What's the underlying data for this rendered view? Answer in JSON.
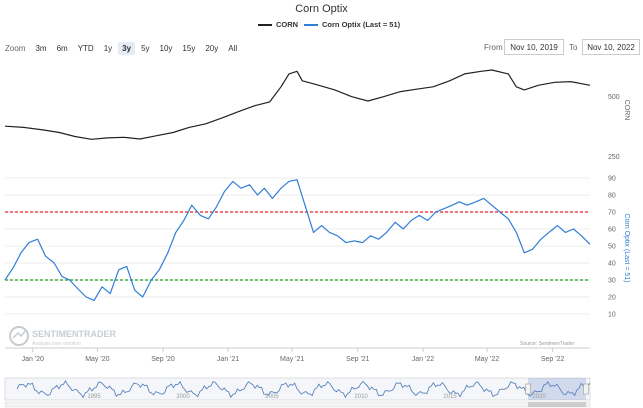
{
  "title": "Corn Optix",
  "legend": {
    "series1": "CORN",
    "series2": "Corn Optix (Last = 51)"
  },
  "colors": {
    "price": "#222222",
    "optix": "#2f7ed8",
    "upper_line": "#e8242b",
    "lower_line": "#1e9e1e",
    "navigator": "#4a78b5"
  },
  "zoom": {
    "label": "Zoom",
    "buttons": [
      "3m",
      "6m",
      "YTD",
      "1y",
      "3y",
      "5y",
      "10y",
      "15y",
      "20y",
      "All"
    ],
    "active": "3y"
  },
  "range": {
    "from_label": "From",
    "from_value": "Nov 10, 2019",
    "to_label": "To",
    "to_value": "Nov 10, 2022"
  },
  "watermark": {
    "name": "SENTIMENTRADER",
    "tagline": "Analysis over emotion"
  },
  "credit": "Source: SentimenTrader",
  "chart_data": {
    "type": "line",
    "x_ticks": [
      "Jan '20",
      "May '20",
      "Sep '20",
      "Jan '21",
      "May '21",
      "Sep '21",
      "Jan '22",
      "May '22",
      "Sep '22"
    ],
    "navigator_ticks": [
      "1995",
      "2000",
      "2005",
      "2010",
      "2015",
      "2020"
    ],
    "series": [
      {
        "name": "CORN",
        "axis": "CORN",
        "log_scale": true,
        "y_ticks": [
          250,
          500
        ],
        "points": [
          [
            "2019-11-10",
            355
          ],
          [
            "2019-12-15",
            350
          ],
          [
            "2020-01-20",
            340
          ],
          [
            "2020-02-20",
            330
          ],
          [
            "2020-03-20",
            315
          ],
          [
            "2020-04-20",
            305
          ],
          [
            "2020-05-20",
            310
          ],
          [
            "2020-06-20",
            312
          ],
          [
            "2020-07-20",
            306
          ],
          [
            "2020-08-20",
            318
          ],
          [
            "2020-09-20",
            330
          ],
          [
            "2020-10-20",
            350
          ],
          [
            "2020-11-20",
            365
          ],
          [
            "2020-12-20",
            390
          ],
          [
            "2021-01-20",
            420
          ],
          [
            "2021-02-20",
            450
          ],
          [
            "2021-03-20",
            470
          ],
          [
            "2021-04-10",
            560
          ],
          [
            "2021-04-25",
            650
          ],
          [
            "2021-05-10",
            670
          ],
          [
            "2021-05-20",
            600
          ],
          [
            "2021-06-10",
            580
          ],
          [
            "2021-07-20",
            540
          ],
          [
            "2021-08-20",
            500
          ],
          [
            "2021-09-20",
            475
          ],
          [
            "2021-10-20",
            500
          ],
          [
            "2021-11-20",
            530
          ],
          [
            "2021-12-20",
            545
          ],
          [
            "2022-01-20",
            560
          ],
          [
            "2022-02-20",
            600
          ],
          [
            "2022-03-20",
            650
          ],
          [
            "2022-04-20",
            670
          ],
          [
            "2022-05-10",
            680
          ],
          [
            "2022-06-10",
            650
          ],
          [
            "2022-06-25",
            560
          ],
          [
            "2022-07-10",
            540
          ],
          [
            "2022-08-05",
            570
          ],
          [
            "2022-09-05",
            590
          ],
          [
            "2022-10-05",
            595
          ],
          [
            "2022-11-10",
            570
          ]
        ]
      },
      {
        "name": "Corn Optix (Last = 51)",
        "axis": "Corn Optix (Last = 51)",
        "y_range": [
          10,
          90
        ],
        "y_ticks": [
          10,
          20,
          30,
          40,
          50,
          60,
          70,
          80,
          90
        ],
        "reference_lines": [
          70,
          30
        ],
        "points": [
          [
            "2019-11-10",
            30
          ],
          [
            "2019-11-25",
            37
          ],
          [
            "2019-12-10",
            46
          ],
          [
            "2019-12-25",
            52
          ],
          [
            "2020-01-10",
            54
          ],
          [
            "2020-01-25",
            44
          ],
          [
            "2020-02-10",
            40
          ],
          [
            "2020-02-25",
            32
          ],
          [
            "2020-03-10",
            30
          ],
          [
            "2020-03-25",
            25
          ],
          [
            "2020-04-10",
            20
          ],
          [
            "2020-04-25",
            18
          ],
          [
            "2020-05-10",
            26
          ],
          [
            "2020-05-25",
            22
          ],
          [
            "2020-06-10",
            36
          ],
          [
            "2020-06-25",
            38
          ],
          [
            "2020-07-10",
            24
          ],
          [
            "2020-07-25",
            20
          ],
          [
            "2020-08-10",
            30
          ],
          [
            "2020-08-25",
            36
          ],
          [
            "2020-09-10",
            46
          ],
          [
            "2020-09-25",
            58
          ],
          [
            "2020-10-10",
            65
          ],
          [
            "2020-10-25",
            74
          ],
          [
            "2020-11-10",
            68
          ],
          [
            "2020-11-25",
            66
          ],
          [
            "2020-12-10",
            73
          ],
          [
            "2020-12-25",
            82
          ],
          [
            "2021-01-10",
            88
          ],
          [
            "2021-01-25",
            84
          ],
          [
            "2021-02-10",
            86
          ],
          [
            "2021-02-25",
            80
          ],
          [
            "2021-03-10",
            84
          ],
          [
            "2021-03-25",
            78
          ],
          [
            "2021-04-10",
            84
          ],
          [
            "2021-04-25",
            88
          ],
          [
            "2021-05-10",
            89
          ],
          [
            "2021-05-25",
            74
          ],
          [
            "2021-06-10",
            58
          ],
          [
            "2021-06-25",
            62
          ],
          [
            "2021-07-10",
            58
          ],
          [
            "2021-07-25",
            56
          ],
          [
            "2021-08-10",
            52
          ],
          [
            "2021-08-25",
            53
          ],
          [
            "2021-09-10",
            52
          ],
          [
            "2021-09-25",
            56
          ],
          [
            "2021-10-10",
            54
          ],
          [
            "2021-10-25",
            58
          ],
          [
            "2021-11-10",
            64
          ],
          [
            "2021-11-25",
            60
          ],
          [
            "2021-12-10",
            65
          ],
          [
            "2021-12-25",
            68
          ],
          [
            "2022-01-10",
            65
          ],
          [
            "2022-01-25",
            70
          ],
          [
            "2022-02-10",
            72
          ],
          [
            "2022-02-25",
            74
          ],
          [
            "2022-03-10",
            76
          ],
          [
            "2022-03-25",
            74
          ],
          [
            "2022-04-10",
            76
          ],
          [
            "2022-04-25",
            78
          ],
          [
            "2022-05-10",
            74
          ],
          [
            "2022-05-25",
            70
          ],
          [
            "2022-06-10",
            66
          ],
          [
            "2022-06-25",
            58
          ],
          [
            "2022-07-10",
            46
          ],
          [
            "2022-07-25",
            48
          ],
          [
            "2022-08-10",
            54
          ],
          [
            "2022-08-25",
            58
          ],
          [
            "2022-09-10",
            62
          ],
          [
            "2022-09-25",
            58
          ],
          [
            "2022-10-10",
            60
          ],
          [
            "2022-10-25",
            56
          ],
          [
            "2022-11-10",
            51
          ]
        ]
      }
    ]
  }
}
